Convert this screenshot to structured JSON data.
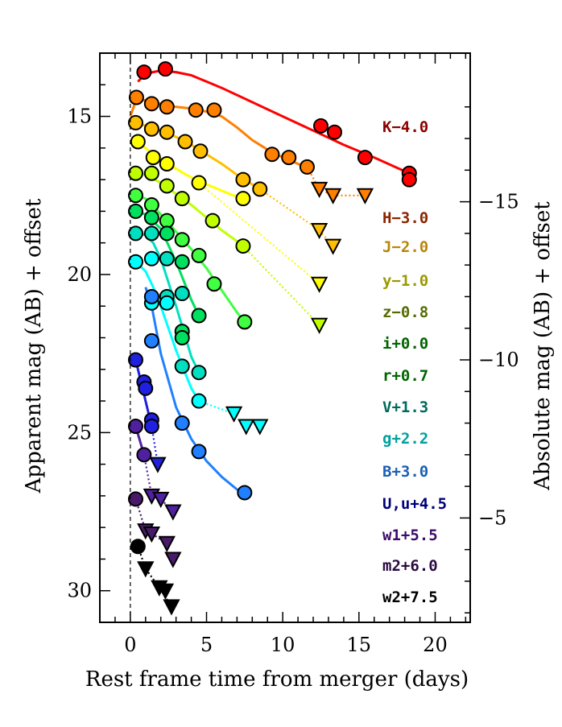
{
  "chart_data": {
    "type": "scatter",
    "title": "",
    "xlabel": "Rest frame time from merger (days)",
    "ylabel": "Apparent mag (AB) + offset",
    "y2label": "Absolute mag (AB) + offset",
    "xlim": [
      -2,
      22.3
    ],
    "ylim": [
      31,
      13
    ],
    "y2_offset": -32.7,
    "xticks": [
      "0",
      "5",
      "10",
      "15",
      "20"
    ],
    "xtick_values": [
      0,
      5,
      10,
      15,
      20
    ],
    "yticks": [
      "15",
      "20",
      "25",
      "30"
    ],
    "ytick_values": [
      15,
      20,
      25,
      30
    ],
    "y2ticks": [
      "−15",
      "−10",
      "−5"
    ],
    "y2tick_values": [
      -15,
      -10,
      -5
    ],
    "merger_line_x": 0,
    "legend_placement": "right, stacked labels",
    "series": [
      {
        "name": "K−4.0",
        "color": "#ff0000",
        "label_color": "#8b0000",
        "detections": [
          [
            0.9,
            13.6
          ],
          [
            2.3,
            13.5
          ],
          [
            12.5,
            15.3
          ],
          [
            13.4,
            15.5
          ],
          [
            15.4,
            16.3
          ],
          [
            18.3,
            16.8
          ],
          [
            18.3,
            17.0
          ]
        ],
        "upper_limits": [],
        "fit_x": [
          0.5,
          1,
          2,
          3,
          4,
          6,
          8,
          10,
          12,
          14,
          16,
          18.3
        ],
        "fit_y": [
          13.9,
          13.65,
          13.55,
          13.6,
          13.7,
          14.1,
          14.55,
          15.0,
          15.45,
          15.9,
          16.3,
          16.8
        ],
        "limit_path": []
      },
      {
        "name": "H−3.0",
        "color": "#ff7f00",
        "label_color": "#8b2500",
        "detections": [
          [
            0.4,
            14.4
          ],
          [
            1.4,
            14.6
          ],
          [
            2.4,
            14.7
          ],
          [
            4.3,
            14.8
          ],
          [
            5.5,
            14.8
          ],
          [
            9.3,
            16.2
          ],
          [
            10.4,
            16.3
          ],
          [
            11.6,
            16.6
          ]
        ],
        "upper_limits": [
          [
            12.4,
            17.3
          ],
          [
            13.3,
            17.5
          ],
          [
            15.4,
            17.5
          ]
        ],
        "fit_x": [
          0,
          0.4,
          1,
          2,
          3,
          4,
          5,
          6,
          7,
          8,
          9,
          10,
          11,
          11.6
        ],
        "fit_y": [
          15.0,
          14.45,
          14.5,
          14.6,
          14.7,
          14.75,
          14.85,
          15.0,
          15.35,
          15.75,
          16.05,
          16.3,
          16.5,
          16.6
        ],
        "limit_path": [
          [
            11.6,
            16.6
          ],
          [
            12.4,
            17.3
          ],
          [
            13.3,
            17.5
          ],
          [
            15.4,
            17.5
          ]
        ]
      },
      {
        "name": "J−2.0",
        "color": "#ffbf00",
        "label_color": "#b8860b",
        "detections": [
          [
            0.35,
            15.2
          ],
          [
            1.4,
            15.4
          ],
          [
            2.4,
            15.5
          ],
          [
            3.6,
            15.8
          ],
          [
            4.6,
            16.1
          ],
          [
            7.4,
            17.0
          ],
          [
            8.5,
            17.3
          ]
        ],
        "upper_limits": [
          [
            12.4,
            18.6
          ],
          [
            13.3,
            19.1
          ]
        ],
        "fit_x": [
          0.35,
          1,
          2,
          3,
          4,
          5,
          6,
          7,
          8,
          8.5
        ],
        "fit_y": [
          15.2,
          15.3,
          15.45,
          15.65,
          15.9,
          16.2,
          16.5,
          16.85,
          17.15,
          17.3
        ],
        "limit_path": [
          [
            8.5,
            17.3
          ],
          [
            12.4,
            18.6
          ],
          [
            13.3,
            19.1
          ]
        ]
      },
      {
        "name": "y−1.0",
        "color": "#ffff00",
        "label_color": "#9a9a00",
        "detections": [
          [
            0.5,
            15.8
          ],
          [
            1.5,
            16.3
          ],
          [
            2.4,
            16.5
          ],
          [
            4.5,
            17.1
          ],
          [
            7.4,
            17.6
          ]
        ],
        "upper_limits": [
          [
            12.4,
            20.3
          ]
        ],
        "fit_x": [
          0.5,
          1.5,
          2.5,
          3.5,
          4.5,
          5.5,
          6.5,
          7.4
        ],
        "fit_y": [
          15.8,
          16.2,
          16.5,
          16.8,
          17.05,
          17.25,
          17.45,
          17.6
        ],
        "limit_path": [
          [
            4.5,
            17.1
          ],
          [
            12.4,
            20.3
          ]
        ]
      },
      {
        "name": "z−0.8",
        "color": "#bfff00",
        "label_color": "#556b00",
        "detections": [
          [
            0.35,
            16.8
          ],
          [
            1.4,
            16.8
          ],
          [
            2.4,
            17.2
          ],
          [
            3.4,
            17.6
          ],
          [
            5.4,
            18.3
          ],
          [
            7.4,
            19.1
          ]
        ],
        "upper_limits": [
          [
            12.4,
            21.6
          ]
        ],
        "fit_x": [
          0.35,
          1,
          2,
          3,
          4,
          5,
          6,
          7,
          7.4
        ],
        "fit_y": [
          16.8,
          16.85,
          17.1,
          17.45,
          17.8,
          18.2,
          18.6,
          18.95,
          19.1
        ],
        "limit_path": [
          [
            7.4,
            19.1
          ],
          [
            12.4,
            21.6
          ]
        ]
      },
      {
        "name": "i+0.0",
        "color": "#40ff40",
        "label_color": "#006400",
        "detections": [
          [
            0.35,
            17.5
          ],
          [
            1.4,
            17.8
          ],
          [
            2.4,
            18.3
          ],
          [
            3.4,
            18.9
          ],
          [
            4.5,
            19.4
          ],
          [
            5.5,
            20.3
          ],
          [
            7.5,
            21.5
          ]
        ],
        "upper_limits": [],
        "fit_x": [
          0.35,
          1,
          2,
          3,
          4,
          5,
          6,
          7,
          7.5
        ],
        "fit_y": [
          17.5,
          17.6,
          18.1,
          18.65,
          19.2,
          19.8,
          20.5,
          21.2,
          21.5
        ],
        "limit_path": []
      },
      {
        "name": "r+0.7",
        "color": "#00e060",
        "label_color": "#006400",
        "detections": [
          [
            0.35,
            18.0
          ],
          [
            1.4,
            18.2
          ],
          [
            2.4,
            18.7
          ],
          [
            3.4,
            19.6
          ],
          [
            4.5,
            21.3
          ],
          [
            3.4,
            21.8
          ],
          [
            3.4,
            22.0
          ]
        ],
        "upper_limits": [],
        "fit_x": [
          0.35,
          1,
          2,
          3,
          4,
          4.5
        ],
        "fit_y": [
          18.0,
          18.1,
          18.55,
          19.6,
          20.8,
          21.3
        ],
        "limit_path": []
      },
      {
        "name": "V+1.3",
        "color": "#00e0c0",
        "label_color": "#006a5a",
        "detections": [
          [
            0.35,
            18.7
          ],
          [
            1.4,
            18.7
          ],
          [
            2.4,
            19.5
          ],
          [
            2.4,
            20.7
          ],
          [
            3.4,
            20.6
          ],
          [
            4.5,
            23.1
          ],
          [
            3.4,
            22.9
          ]
        ],
        "upper_limits": [],
        "fit_x": [
          0.35,
          1,
          1.5,
          2,
          3,
          4,
          4.5
        ],
        "fit_y": [
          18.7,
          18.75,
          19.0,
          19.5,
          21.0,
          22.6,
          23.1
        ],
        "limit_path": []
      },
      {
        "name": "g+2.2",
        "color": "#00ffff",
        "label_color": "#00a0a0",
        "detections": [
          [
            0.35,
            19.6
          ],
          [
            1.4,
            19.5
          ],
          [
            1.4,
            20.9
          ],
          [
            2.4,
            20.9
          ],
          [
            4.5,
            24.0
          ]
        ],
        "upper_limits": [
          [
            6.8,
            24.4
          ],
          [
            7.6,
            24.8
          ],
          [
            8.5,
            24.8
          ]
        ],
        "fit_x": [
          0.35,
          1,
          1.5,
          2,
          3,
          4,
          4.5
        ],
        "fit_y": [
          19.6,
          19.9,
          20.4,
          21.0,
          22.4,
          23.6,
          24.0
        ],
        "limit_path": [
          [
            4.5,
            24.0
          ],
          [
            6.8,
            24.4
          ]
        ]
      },
      {
        "name": "B+3.0",
        "color": "#2080ff",
        "label_color": "#1a5fb4",
        "detections": [
          [
            1.4,
            20.7
          ],
          [
            1.4,
            22.1
          ],
          [
            3.4,
            24.7
          ],
          [
            4.5,
            25.6
          ],
          [
            7.5,
            26.9
          ]
        ],
        "upper_limits": [],
        "fit_x": [
          1.0,
          1.4,
          2,
          3,
          4,
          5,
          6,
          7,
          7.5
        ],
        "fit_y": [
          20.4,
          21.0,
          22.5,
          24.2,
          25.2,
          25.9,
          26.4,
          26.8,
          26.9
        ],
        "limit_path": []
      },
      {
        "name": "U,u+4.5",
        "color": "#2020e0",
        "label_color": "#00007a",
        "detections": [
          [
            0.35,
            22.7
          ],
          [
            0.9,
            23.4
          ],
          [
            1.0,
            23.6
          ],
          [
            1.4,
            24.6
          ],
          [
            1.4,
            24.8
          ]
        ],
        "upper_limits": [
          [
            1.8,
            26.0
          ]
        ],
        "fit_x": [
          0.35,
          0.8,
          1.2,
          1.6
        ],
        "fit_y": [
          22.7,
          23.6,
          24.4,
          25.0
        ],
        "limit_path": [
          [
            1.4,
            24.8
          ],
          [
            1.8,
            26.0
          ]
        ]
      },
      {
        "name": "w1+5.5",
        "color": "#5020a0",
        "label_color": "#3b0a6b",
        "detections": [
          [
            0.35,
            24.8
          ],
          [
            0.9,
            25.7
          ]
        ],
        "upper_limits": [
          [
            1.4,
            27.0
          ],
          [
            2.0,
            27.1
          ],
          [
            2.8,
            27.5
          ]
        ],
        "fit_x": [
          0.35,
          0.9
        ],
        "fit_y": [
          24.8,
          25.7
        ],
        "limit_path": [
          [
            0.9,
            25.7
          ],
          [
            1.4,
            27.0
          ],
          [
            2.0,
            27.1
          ],
          [
            2.8,
            27.5
          ]
        ]
      },
      {
        "name": "m2+6.0",
        "color": "#4a1a6a",
        "label_color": "#2a0a40",
        "detections": [
          [
            0.35,
            27.1
          ]
        ],
        "upper_limits": [
          [
            1.0,
            28.1
          ],
          [
            1.4,
            28.2
          ],
          [
            2.4,
            28.5
          ],
          [
            2.8,
            29.0
          ]
        ],
        "fit_x": [],
        "fit_y": [],
        "limit_path": [
          [
            0.35,
            27.1
          ],
          [
            1.0,
            28.1
          ],
          [
            1.4,
            28.2
          ],
          [
            2.4,
            28.5
          ]
        ]
      },
      {
        "name": "w2+7.5",
        "color": "#000000",
        "label_color": "#000000",
        "detections": [
          [
            0.5,
            28.6
          ]
        ],
        "upper_limits": [
          [
            1.0,
            29.3
          ],
          [
            1.9,
            29.9
          ],
          [
            2.3,
            30.0
          ],
          [
            2.7,
            30.5
          ]
        ],
        "fit_x": [],
        "fit_y": [],
        "limit_path": [
          [
            0.5,
            28.6
          ],
          [
            1.0,
            29.3
          ],
          [
            1.9,
            29.9
          ],
          [
            2.7,
            30.5
          ]
        ]
      }
    ]
  }
}
